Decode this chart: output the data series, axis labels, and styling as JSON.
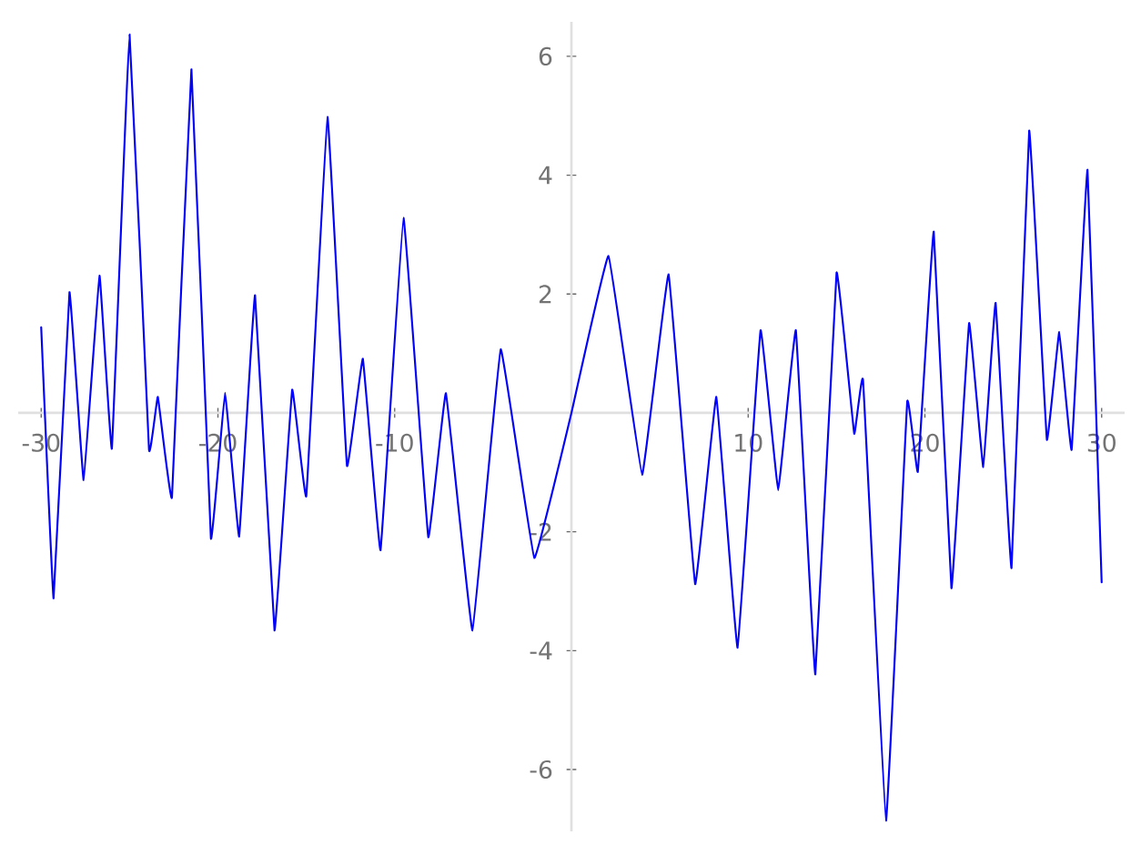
{
  "chart_data": {
    "type": "line",
    "color": "#0000ff",
    "marker": "none",
    "line_style": "solid",
    "grid": false,
    "xlim": [
      -31.3,
      31.3
    ],
    "ylim": [
      -7.04,
      6.58
    ],
    "xticks": [
      -30,
      -20,
      -10,
      10,
      20,
      30
    ],
    "yticks": [
      -6,
      -4,
      -2,
      2,
      4,
      6
    ],
    "x": [
      -30,
      -29.3,
      -28.4,
      -27.6,
      -26.7,
      -26.0,
      -25.0,
      -23.9,
      -23.4,
      -22.6,
      -21.5,
      -20.4,
      -19.6,
      -18.8,
      -17.9,
      -16.8,
      -15.8,
      -15.0,
      -13.8,
      -12.7,
      -11.8,
      -10.8,
      -9.5,
      -8.1,
      -7.1,
      -5.6,
      -4.0,
      -2.1,
      0,
      2.1,
      4.0,
      5.5,
      7.0,
      8.2,
      9.4,
      10.7,
      11.7,
      12.7,
      13.8,
      15.0,
      16.0,
      16.5,
      17.8,
      19.0,
      19.6,
      20.5,
      21.5,
      22.5,
      23.3,
      24.0,
      24.9,
      25.9,
      26.9,
      27.6,
      28.3,
      29.2,
      30.0
    ],
    "values": [
      1.44,
      -3.12,
      2.03,
      -1.13,
      2.31,
      -0.6,
      6.37,
      -0.62,
      0.27,
      -1.42,
      5.78,
      -2.11,
      0.34,
      -2.08,
      1.98,
      -3.66,
      0.39,
      -1.4,
      4.98,
      -0.89,
      0.91,
      -2.31,
      3.28,
      -2.09,
      0.33,
      -3.66,
      1.07,
      -2.44,
      0,
      2.64,
      -1.04,
      2.33,
      -2.88,
      0.27,
      -3.95,
      1.39,
      -1.3,
      1.39,
      -4.4,
      2.36,
      -0.35,
      0.55,
      -6.86,
      0.19,
      -0.99,
      3.05,
      -2.95,
      1.51,
      -0.91,
      1.85,
      -2.61,
      4.75,
      -0.45,
      1.36,
      -0.62,
      4.09,
      -2.85
    ]
  }
}
